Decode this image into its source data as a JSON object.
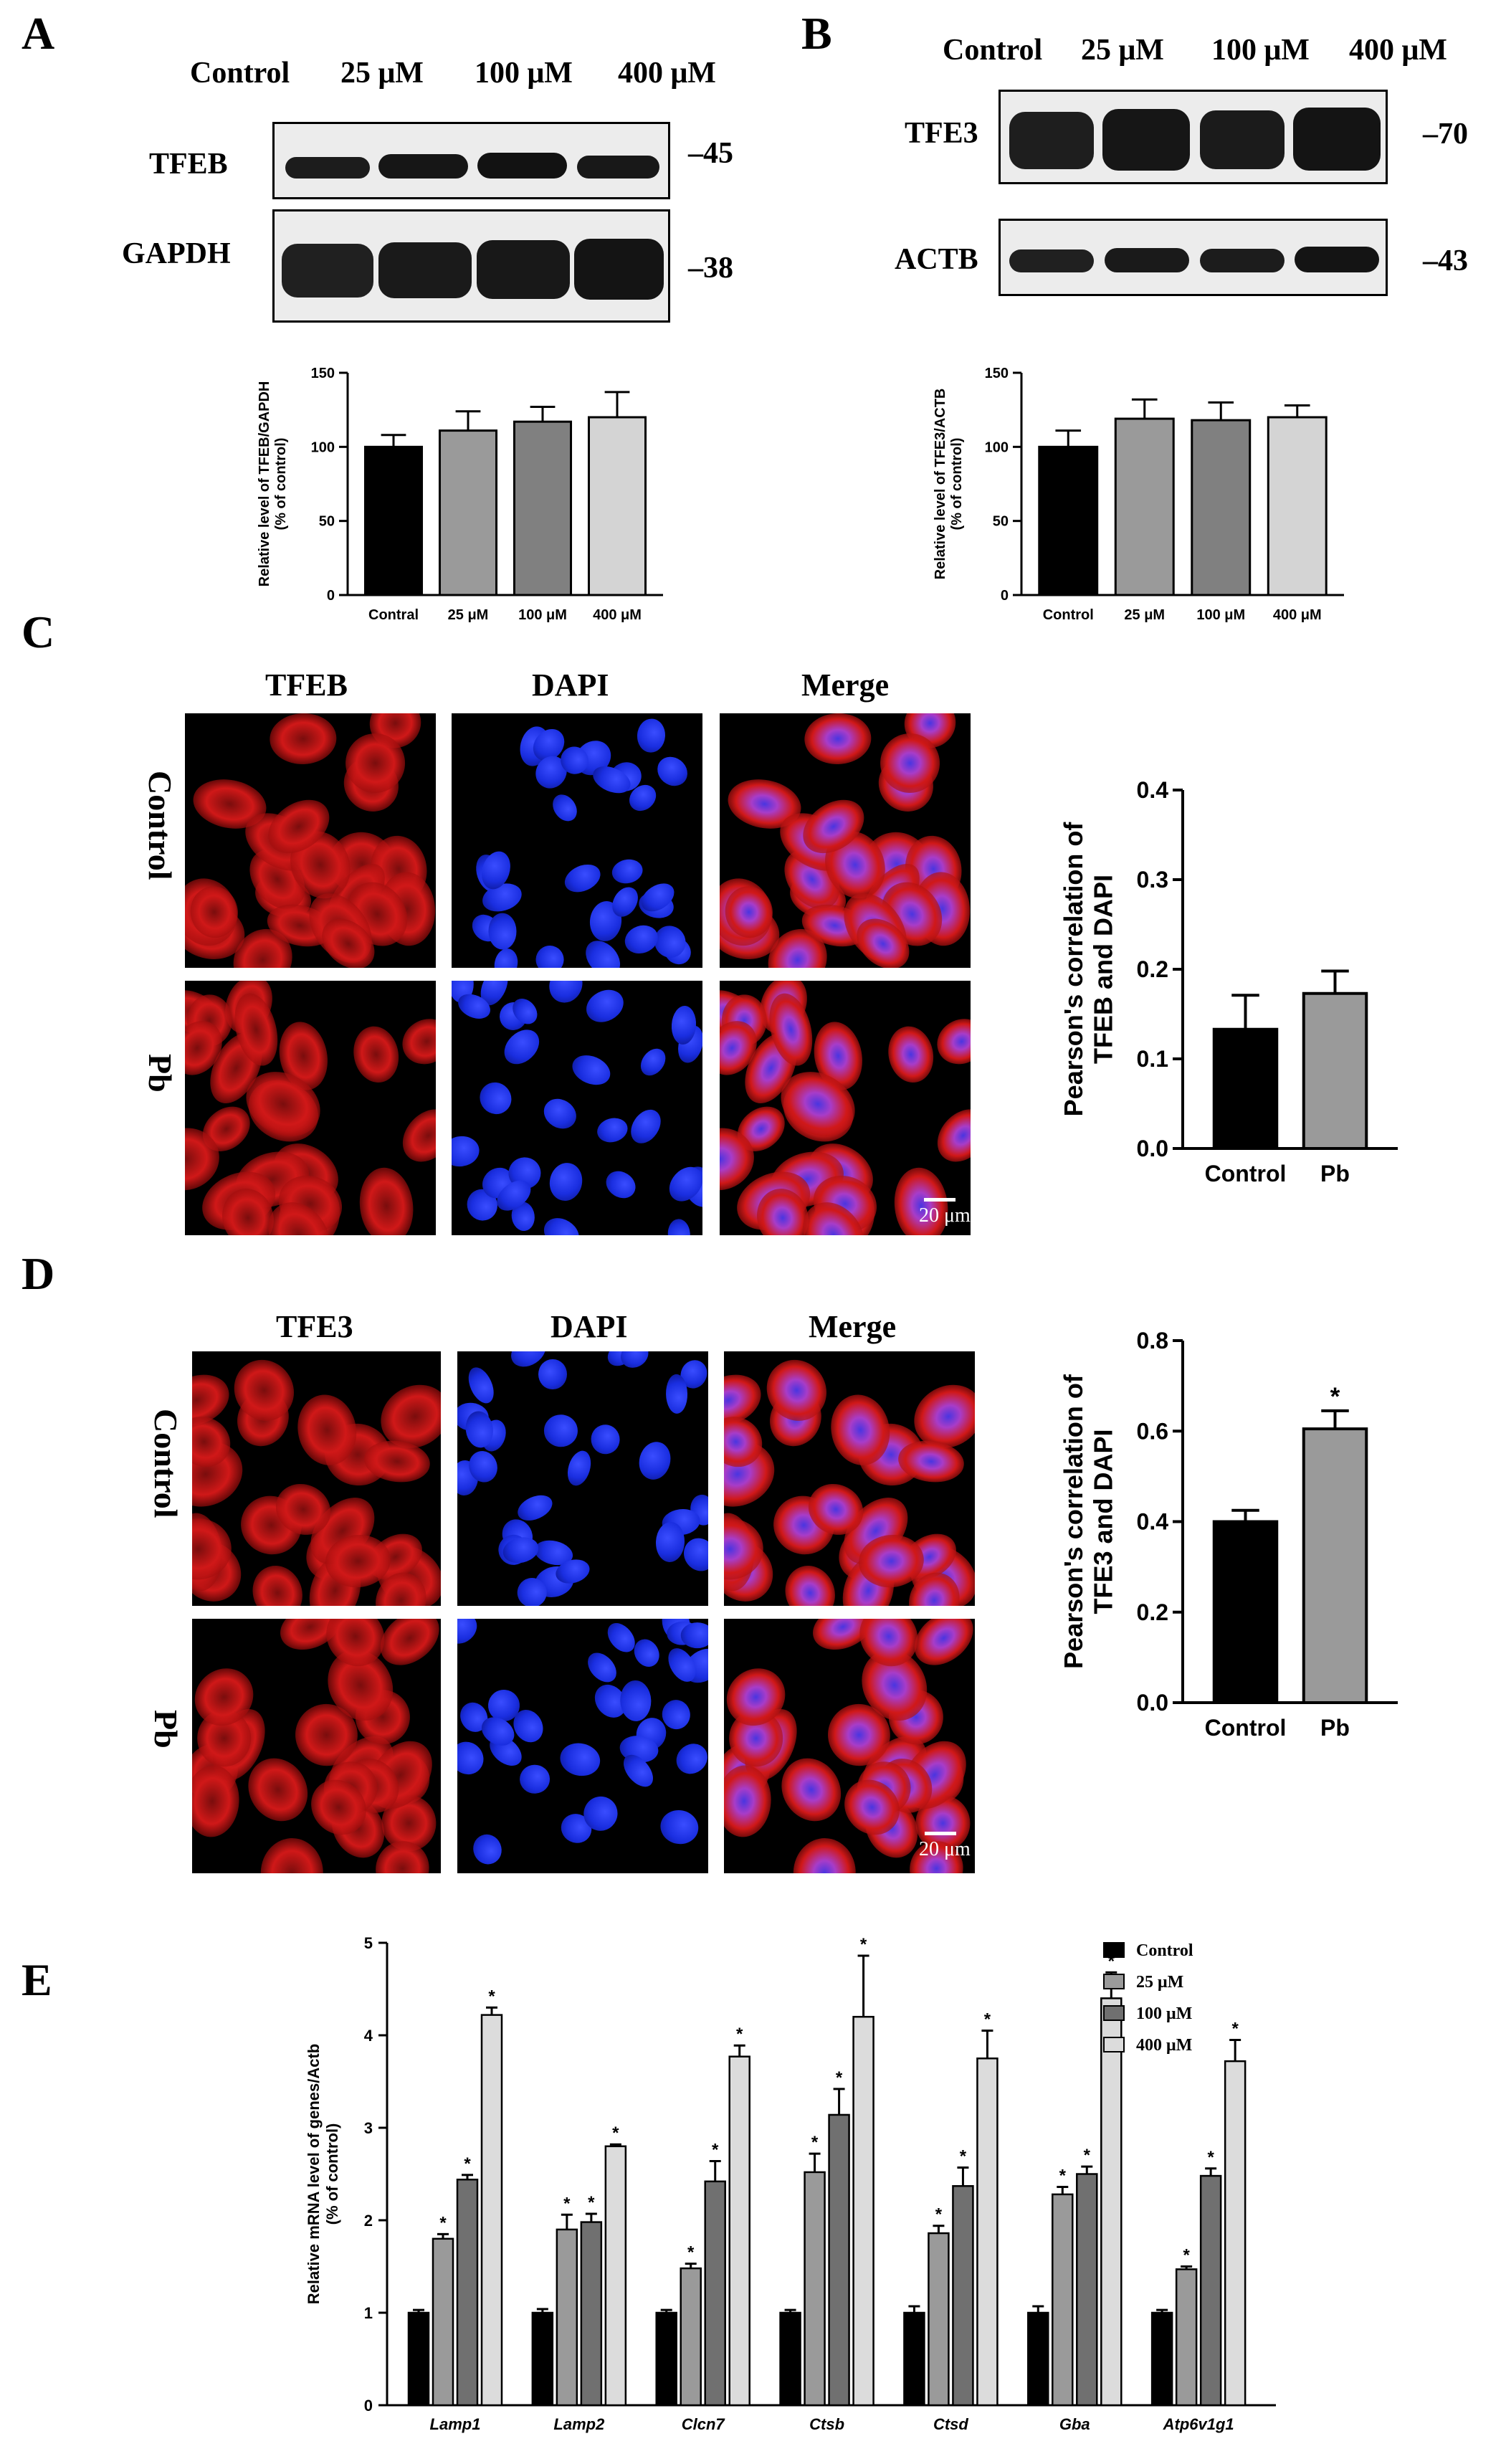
{
  "panels": {
    "A": {
      "letter": "A",
      "lanes": [
        "Control",
        "25 μM",
        "100 μM",
        "400 μM"
      ],
      "blots": [
        {
          "label": "TFEB",
          "marker": "–45"
        },
        {
          "label": "GAPDH",
          "marker": "–38"
        }
      ]
    },
    "B": {
      "letter": "B",
      "lanes": [
        "Control",
        "25 μM",
        "100 μM",
        "400 μM"
      ],
      "blots": [
        {
          "label": "TFE3",
          "marker": "–70"
        },
        {
          "label": "ACTB",
          "marker": "–43"
        }
      ]
    },
    "C": {
      "letter": "C",
      "columns": [
        "TFEB",
        "DAPI",
        "Merge"
      ],
      "rows": [
        "Control",
        "Pb"
      ],
      "scale": "20 μm"
    },
    "D": {
      "letter": "D",
      "columns": [
        "TFE3",
        "DAPI",
        "Merge"
      ],
      "rows": [
        "Control",
        "Pb"
      ],
      "scale": "20 μm"
    },
    "E": {
      "letter": "E"
    }
  },
  "colors": {
    "black_bar": "#000000",
    "dark_gray": "#666666",
    "mid_gray": "#999999",
    "light_gray": "#d9d9d9",
    "red_signal": "#d01818",
    "blue_signal": "#1a2ee0",
    "merge_pink": "#a83cc8"
  },
  "chart_data": [
    {
      "id": "A",
      "type": "bar",
      "categories": [
        "Contral",
        "25 μM",
        "100 μM",
        "400 μM"
      ],
      "values": [
        100,
        111,
        117,
        120
      ],
      "errors": [
        8,
        13,
        10,
        17
      ],
      "ylabel": "Relative level of TFEB/GAPDH\n(% of control)",
      "ylim": [
        0,
        150
      ],
      "yticks": [
        0,
        50,
        100,
        150
      ],
      "colors": [
        "#000000",
        "#9a9a9a",
        "#808080",
        "#d4d4d4"
      ]
    },
    {
      "id": "B",
      "type": "bar",
      "categories": [
        "Control",
        "25 μM",
        "100 μM",
        "400 μM"
      ],
      "values": [
        100,
        119,
        118,
        120
      ],
      "errors": [
        11,
        13,
        12,
        8
      ],
      "ylabel": "Relative level of TFE3/ACTB\n(% of control)",
      "ylim": [
        0,
        150
      ],
      "yticks": [
        0,
        50,
        100,
        150
      ],
      "colors": [
        "#000000",
        "#9a9a9a",
        "#808080",
        "#d4d4d4"
      ]
    },
    {
      "id": "C",
      "type": "bar",
      "categories": [
        "Control",
        "Pb"
      ],
      "values": [
        0.133,
        0.173
      ],
      "errors": [
        0.038,
        0.025
      ],
      "ylabel": "Pearson's correlation of\nTFEB and DAPI",
      "ylim": [
        0,
        0.4
      ],
      "yticks": [
        "0.0",
        "0.1",
        "0.2",
        "0.3",
        "0.4"
      ],
      "colors": [
        "#000000",
        "#9a9a9a"
      ]
    },
    {
      "id": "D",
      "type": "bar",
      "categories": [
        "Control",
        "Pb"
      ],
      "values": [
        0.4,
        0.605
      ],
      "errors": [
        0.025,
        0.04
      ],
      "significance": [
        "",
        "*"
      ],
      "ylabel": "Pearson's correlation of\nTFE3 and DAPI",
      "ylim": [
        0,
        0.8
      ],
      "yticks": [
        "0.0",
        "0.2",
        "0.4",
        "0.6",
        "0.8"
      ],
      "colors": [
        "#000000",
        "#9a9a9a"
      ]
    },
    {
      "id": "E",
      "type": "bar",
      "categories": [
        "Lamp1",
        "Lamp2",
        "Clcn7",
        "Ctsb",
        "Ctsd",
        "Gba",
        "Atp6v1g1"
      ],
      "ylabel": "Relative mRNA level of genes/Actb\n(% of control)",
      "ylim": [
        0,
        5
      ],
      "yticks": [
        0,
        1,
        2,
        3,
        4,
        5
      ],
      "series": [
        {
          "name": "Control",
          "color": "#000000",
          "values": [
            1.0,
            1.0,
            1.0,
            1.0,
            1.0,
            1.0,
            1.0
          ],
          "errors": [
            0.03,
            0.04,
            0.03,
            0.03,
            0.07,
            0.07,
            0.03
          ],
          "sig": [
            "",
            "",
            "",
            "",
            "",
            "",
            ""
          ]
        },
        {
          "name": "25 μM",
          "color": "#9a9a9a",
          "values": [
            1.8,
            1.9,
            1.48,
            2.52,
            1.86,
            2.28,
            1.47
          ],
          "errors": [
            0.05,
            0.16,
            0.05,
            0.2,
            0.08,
            0.08,
            0.03
          ],
          "sig": [
            "*",
            "*",
            "*",
            "*",
            "*",
            "*",
            "*"
          ]
        },
        {
          "name": "100 μM",
          "color": "#707070",
          "values": [
            2.44,
            1.98,
            2.42,
            3.14,
            2.37,
            2.5,
            2.48
          ],
          "errors": [
            0.05,
            0.09,
            0.22,
            0.28,
            0.2,
            0.08,
            0.08
          ],
          "sig": [
            "*",
            "*",
            "*",
            "*",
            "*",
            "*",
            "*"
          ]
        },
        {
          "name": "400 μM",
          "color": "#dcdcdc",
          "values": [
            4.22,
            2.8,
            3.77,
            4.2,
            3.75,
            4.4,
            3.72
          ],
          "errors": [
            0.08,
            0.02,
            0.12,
            0.66,
            0.3,
            0.28,
            0.23
          ],
          "sig": [
            "*",
            "*",
            "*",
            "*",
            "*",
            "*",
            "*"
          ]
        }
      ]
    }
  ]
}
